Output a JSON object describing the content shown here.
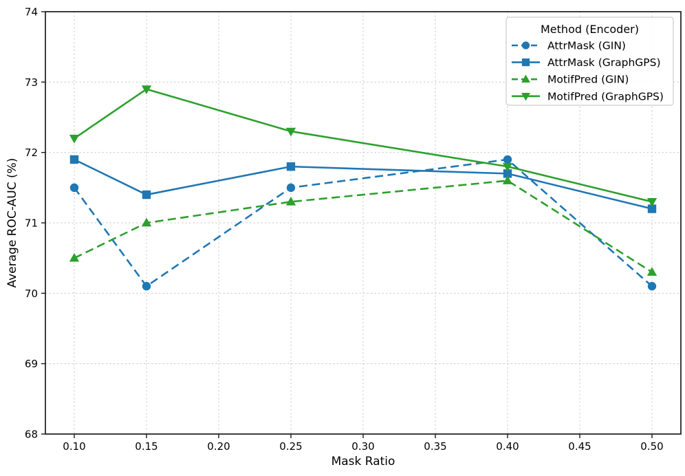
{
  "chart_data": {
    "type": "line",
    "title": "",
    "xlabel": "Mask Ratio",
    "ylabel": "Average ROC-AUC (%)",
    "xlim": [
      0.08,
      0.52
    ],
    "ylim": [
      68,
      74
    ],
    "xticks": [
      0.1,
      0.15,
      0.2,
      0.25,
      0.3,
      0.35,
      0.4,
      0.45,
      0.5
    ],
    "yticks": [
      68,
      69,
      70,
      71,
      72,
      73,
      74
    ],
    "grid": true,
    "legend_title": "Method (Encoder)",
    "legend_position": "upper right",
    "x": [
      0.1,
      0.15,
      0.25,
      0.4,
      0.5
    ],
    "series": [
      {
        "name": "AttrMask (GIN)",
        "method": "AttrMask",
        "encoder": "GIN",
        "color": "#1f77b4",
        "linestyle": "dashed",
        "marker": "circle",
        "values": [
          71.5,
          70.1,
          71.5,
          71.9,
          70.1
        ]
      },
      {
        "name": "AttrMask (GraphGPS)",
        "method": "AttrMask",
        "encoder": "GraphGPS",
        "color": "#1f77b4",
        "linestyle": "solid",
        "marker": "square",
        "values": [
          71.9,
          71.4,
          71.8,
          71.7,
          71.2
        ]
      },
      {
        "name": "MotifPred (GIN)",
        "method": "MotifPred",
        "encoder": "GIN",
        "color": "#2ca02c",
        "linestyle": "dashed",
        "marker": "triangle-up",
        "values": [
          70.5,
          71.0,
          71.3,
          71.6,
          70.3
        ]
      },
      {
        "name": "MotifPred (GraphGPS)",
        "method": "MotifPred",
        "encoder": "GraphGPS",
        "color": "#2ca02c",
        "linestyle": "solid",
        "marker": "triangle-down",
        "values": [
          72.2,
          72.9,
          72.3,
          71.8,
          71.3
        ]
      }
    ],
    "style": {
      "grid_color": "#cccccc",
      "spine_color": "#1a1a1a",
      "background": "#ffffff",
      "legend_border": "#cccccc"
    }
  }
}
